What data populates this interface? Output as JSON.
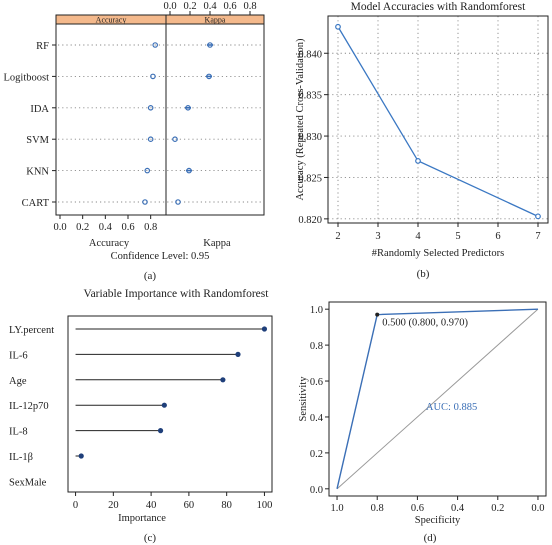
{
  "panel_labels": [
    "(a)",
    "(b)",
    "(c)",
    "(d)"
  ],
  "chart_data": [
    {
      "id": "a",
      "type": "scatter",
      "strip_labels": [
        "Accuracy",
        "Kappa"
      ],
      "models": [
        "RF",
        "Logitboost",
        "IDA",
        "SVM",
        "KNN",
        "CART"
      ],
      "accuracy": [
        0.84,
        0.82,
        0.8,
        0.8,
        0.77,
        0.75
      ],
      "kappa": [
        0.4,
        0.39,
        0.18,
        0.05,
        0.19,
        0.08
      ],
      "xticks": [
        "0.0",
        "0.2",
        "0.4",
        "0.6",
        "0.8"
      ],
      "xlim": [
        0,
        0.9
      ],
      "bottom_labels": [
        "Accuracy",
        "Kappa"
      ],
      "footer": "Confidence Level: 0.95",
      "strip_color": "#f4b98c",
      "point_color": "#3b6fb6"
    },
    {
      "id": "b",
      "type": "line",
      "title": "Model Accuracies with Randomforest",
      "xlabel": "#Randomly Selected Predictors",
      "ylabel": "Accuracy (Repeated Cross-Validation)",
      "x": [
        2,
        4,
        7
      ],
      "y": [
        0.8432,
        0.827,
        0.8203
      ],
      "xlim": [
        1.75,
        7.25
      ],
      "ylim": [
        0.8195,
        0.8445
      ],
      "xticks": [
        "2",
        "3",
        "4",
        "5",
        "6",
        "7"
      ],
      "yticks": [
        "0.820",
        "0.825",
        "0.830",
        "0.835",
        "0.840"
      ],
      "grid": true,
      "line_color": "#3b78c3"
    },
    {
      "id": "c",
      "type": "bar",
      "title": "Variable Importance with Randomforest",
      "xlabel": "Importance",
      "categories": [
        "LY.percent",
        "IL-6",
        "Age",
        "IL-12p70",
        "IL-8",
        "IL-1β",
        "SexMale"
      ],
      "values": [
        100,
        86,
        78,
        47,
        45,
        3,
        0
      ],
      "xlim": [
        -4,
        104
      ],
      "xticks": [
        "0",
        "20",
        "40",
        "60",
        "80",
        "100"
      ],
      "point_color": "#1f3f7a"
    },
    {
      "id": "d",
      "type": "line",
      "xlabel": "Specificity",
      "ylabel": "Sensitivity",
      "specificity": [
        1.0,
        0.8,
        0.0
      ],
      "sensitivity": [
        0.0,
        0.97,
        1.0
      ],
      "xlim": [
        1.04,
        -0.04
      ],
      "ylim": [
        -0.04,
        1.04
      ],
      "xticks": [
        "1.0",
        "0.8",
        "0.6",
        "0.4",
        "0.2",
        "0.0"
      ],
      "yticks": [
        "0.0",
        "0.2",
        "0.4",
        "0.6",
        "0.8",
        "1.0"
      ],
      "point_label": "0.500 (0.800, 0.970)",
      "auc_label": "AUC: 0.885",
      "line_color": "#3b6fb6",
      "diagonal_color": "#999999"
    }
  ]
}
